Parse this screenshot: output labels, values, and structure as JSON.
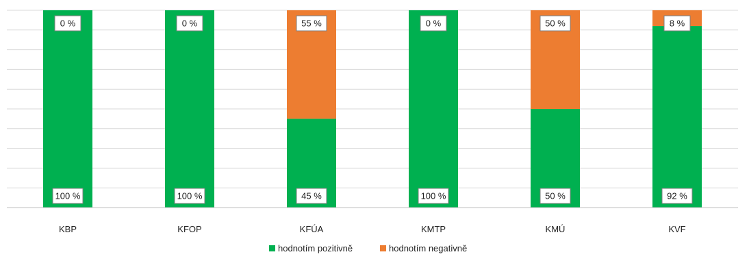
{
  "chart_data": {
    "type": "bar",
    "stacked": true,
    "percent": true,
    "categories": [
      "KBP",
      "KFOP",
      "KFÚA",
      "KMTP",
      "KMÚ",
      "KVF"
    ],
    "series": [
      {
        "name": "hodnotím pozitivně",
        "values": [
          100,
          100,
          45,
          100,
          50,
          92
        ],
        "labels": [
          "100 %",
          "100 %",
          "45 %",
          "100 %",
          "50 %",
          "92 %"
        ],
        "color": "#00b050"
      },
      {
        "name": "hodnotím negativně",
        "values": [
          0,
          0,
          55,
          0,
          50,
          8
        ],
        "labels": [
          "0 %",
          "0 %",
          "55 %",
          "0 %",
          "50 %",
          "8 %"
        ],
        "color": "#ed7d31"
      }
    ],
    "ylim": [
      0,
      100
    ],
    "grid": true,
    "legend": "bottom-center"
  }
}
